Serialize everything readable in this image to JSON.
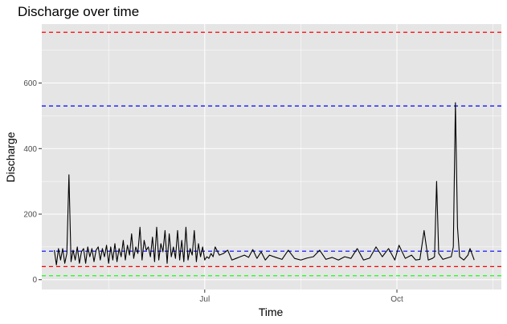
{
  "chart_data": {
    "type": "line",
    "title": "Discharge over time",
    "xlabel": "Time",
    "ylabel": "Discharge",
    "x_range": [
      "2024-04-14",
      "2024-11-20"
    ],
    "ylim": [
      -30,
      780
    ],
    "x_ticks": [
      {
        "label": "Jul",
        "date": "2024-07-01"
      },
      {
        "label": "Oct",
        "date": "2024-10-01"
      }
    ],
    "y_ticks": [
      0,
      200,
      400,
      600
    ],
    "grid": "on",
    "panel_background": "#e5e5e5",
    "gridline_color": "#ffffff",
    "series_color": "#000000",
    "reference_lines": [
      {
        "value": 755,
        "color": "#ff0000",
        "style": "dashed"
      },
      {
        "value": 530,
        "color": "#0000ff",
        "style": "dashed"
      },
      {
        "value": 87,
        "color": "#0000ff",
        "style": "dashed"
      },
      {
        "value": 40,
        "color": "#ff0000",
        "style": "dashed"
      },
      {
        "value": 12,
        "color": "#00ff00",
        "style": "dashed"
      }
    ],
    "series": [
      {
        "x": [
          "2024-04-20",
          "2024-04-21",
          "2024-04-22",
          "2024-04-23",
          "2024-04-24",
          "2024-04-25",
          "2024-04-26",
          "2024-04-27",
          "2024-04-28",
          "2024-04-29",
          "2024-04-30",
          "2024-05-01",
          "2024-05-02",
          "2024-05-03",
          "2024-05-04",
          "2024-05-05",
          "2024-05-06",
          "2024-05-07",
          "2024-05-08",
          "2024-05-09",
          "2024-05-10",
          "2024-05-11",
          "2024-05-12",
          "2024-05-13",
          "2024-05-14",
          "2024-05-15",
          "2024-05-16",
          "2024-05-17",
          "2024-05-18",
          "2024-05-19",
          "2024-05-20",
          "2024-05-21",
          "2024-05-22",
          "2024-05-23",
          "2024-05-24",
          "2024-05-25",
          "2024-05-26",
          "2024-05-27",
          "2024-05-28",
          "2024-05-29",
          "2024-05-30",
          "2024-05-31",
          "2024-06-01",
          "2024-06-02",
          "2024-06-03",
          "2024-06-04",
          "2024-06-05",
          "2024-06-06",
          "2024-06-07",
          "2024-06-08",
          "2024-06-09",
          "2024-06-10",
          "2024-06-11",
          "2024-06-12",
          "2024-06-13",
          "2024-06-14",
          "2024-06-15",
          "2024-06-16",
          "2024-06-17",
          "2024-06-18",
          "2024-06-19",
          "2024-06-20",
          "2024-06-21",
          "2024-06-22",
          "2024-06-23",
          "2024-06-24",
          "2024-06-25",
          "2024-06-26",
          "2024-06-27",
          "2024-06-28",
          "2024-06-29",
          "2024-06-30",
          "2024-07-01",
          "2024-07-02",
          "2024-07-03",
          "2024-07-04",
          "2024-07-05",
          "2024-07-06",
          "2024-07-08",
          "2024-07-10",
          "2024-07-12",
          "2024-07-14",
          "2024-07-16",
          "2024-07-18",
          "2024-07-20",
          "2024-07-22",
          "2024-07-24",
          "2024-07-26",
          "2024-07-28",
          "2024-07-30",
          "2024-08-01",
          "2024-08-04",
          "2024-08-07",
          "2024-08-10",
          "2024-08-13",
          "2024-08-16",
          "2024-08-19",
          "2024-08-22",
          "2024-08-25",
          "2024-08-28",
          "2024-08-31",
          "2024-09-03",
          "2024-09-06",
          "2024-09-09",
          "2024-09-12",
          "2024-09-15",
          "2024-09-18",
          "2024-09-21",
          "2024-09-24",
          "2024-09-27",
          "2024-09-30",
          "2024-10-02",
          "2024-10-05",
          "2024-10-08",
          "2024-10-10",
          "2024-10-12",
          "2024-10-14",
          "2024-10-16",
          "2024-10-18",
          "2024-10-19",
          "2024-10-20",
          "2024-10-21",
          "2024-10-23",
          "2024-10-25",
          "2024-10-27",
          "2024-10-28",
          "2024-10-29",
          "2024-10-30",
          "2024-10-31",
          "2024-11-02",
          "2024-11-04",
          "2024-11-05",
          "2024-11-07"
        ],
        "values": [
          90,
          45,
          95,
          60,
          95,
          50,
          80,
          320,
          55,
          90,
          60,
          100,
          50,
          85,
          95,
          50,
          100,
          70,
          95,
          55,
          90,
          100,
          60,
          95,
          70,
          105,
          50,
          100,
          60,
          110,
          55,
          95,
          70,
          120,
          60,
          105,
          75,
          140,
          65,
          100,
          80,
          160,
          60,
          120,
          90,
          100,
          70,
          130,
          55,
          160,
          60,
          110,
          85,
          150,
          50,
          140,
          70,
          100,
          65,
          150,
          60,
          120,
          55,
          160,
          60,
          95,
          75,
          150,
          55,
          110,
          70,
          100,
          60,
          70,
          65,
          80,
          70,
          100,
          75,
          80,
          90,
          60,
          65,
          70,
          75,
          68,
          92,
          65,
          85,
          60,
          75,
          68,
          62,
          90,
          65,
          60,
          66,
          70,
          90,
          62,
          68,
          60,
          70,
          65,
          95,
          60,
          66,
          100,
          70,
          95,
          60,
          105,
          65,
          75,
          60,
          62,
          150,
          60,
          65,
          70,
          300,
          80,
          62,
          66,
          70,
          100,
          540,
          160,
          70,
          60,
          75,
          95,
          60
        ]
      }
    ]
  }
}
